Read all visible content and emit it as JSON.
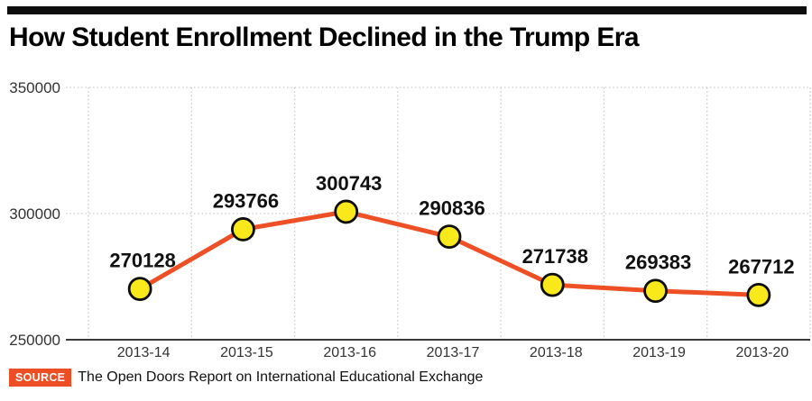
{
  "page": {
    "title": "How Student Enrollment Declined in the Trump Era",
    "source_label": "SOURCE",
    "source_text": "The Open Doors Report on International Educational Exchange"
  },
  "colors": {
    "accent": "#ee4e23",
    "line": "#ee4f25",
    "marker_fill": "#f9e81a",
    "marker_stroke": "#0d0d0d",
    "grid": "#c9c9c9",
    "axis": "#3a3a3a",
    "tick_text": "#333333",
    "value_text": "#111111",
    "top_bar": "#0d0d0d"
  },
  "chart_data": {
    "type": "line",
    "title": "How Student Enrollment Declined in the Trump Era",
    "categories": [
      "2013-14",
      "2013-15",
      "2013-16",
      "2013-17",
      "2013-18",
      "2013-19",
      "2013-20"
    ],
    "values": [
      270128,
      293766,
      300743,
      290836,
      271738,
      269383,
      267712
    ],
    "xlabel": "",
    "ylabel": "",
    "ylim": [
      250000,
      350000
    ],
    "yticks": [
      250000,
      300000,
      350000
    ],
    "grid": "dotted",
    "legend": "none",
    "point_labels_visible": true
  }
}
